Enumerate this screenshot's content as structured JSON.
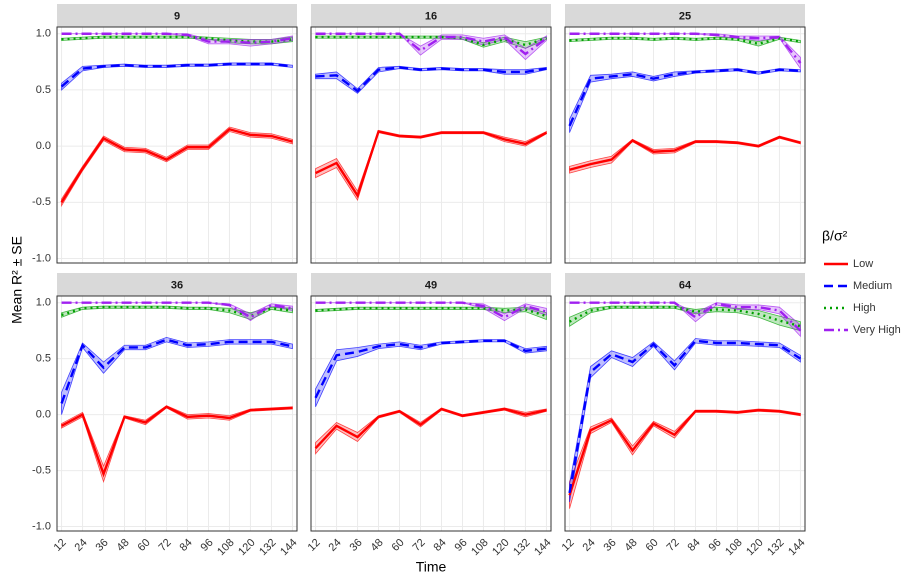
{
  "chart_data": [
    {
      "type": "line",
      "title": "9",
      "ylabel": "Mean R² ± SE",
      "xlabel": "Time",
      "legend_title": "β/σ²",
      "x": [
        12,
        24,
        36,
        48,
        60,
        72,
        84,
        96,
        108,
        120,
        132,
        144
      ],
      "xlim": [
        9.4,
        146.6
      ],
      "ylim": [
        -1.04,
        1.06
      ],
      "yticks": [
        {
          "value": -1,
          "label": "-1.0"
        },
        {
          "value": -0.5,
          "label": "-0.5"
        },
        {
          "value": 0,
          "label": "0.0"
        },
        {
          "value": 0.5,
          "label": "0.5"
        },
        {
          "value": 1,
          "label": "1.0"
        }
      ],
      "grid": true,
      "series": [
        {
          "name": "Low",
          "color": "#ff0000",
          "values": [
            -0.5,
            -0.2,
            0.07,
            -0.03,
            -0.04,
            -0.12,
            -0.01,
            -0.01,
            0.15,
            0.1,
            0.09,
            0.04
          ],
          "se": [
            0.03,
            0.02,
            0.02,
            0.02,
            0.02,
            0.02,
            0.02,
            0.02,
            0.02,
            0.02,
            0.02,
            0.02
          ]
        },
        {
          "name": "Medium",
          "color": "#0000ff",
          "values": [
            0.53,
            0.69,
            0.71,
            0.72,
            0.71,
            0.71,
            0.72,
            0.72,
            0.73,
            0.73,
            0.73,
            0.71
          ],
          "se": [
            0.03,
            0.02,
            0.01,
            0.01,
            0.01,
            0.01,
            0.01,
            0.01,
            0.01,
            0.01,
            0.01,
            0.01
          ]
        },
        {
          "name": "High",
          "color": "#00a000",
          "values": [
            0.95,
            0.96,
            0.97,
            0.97,
            0.97,
            0.97,
            0.97,
            0.96,
            0.94,
            0.93,
            0.93,
            0.95
          ],
          "se": [
            0.01,
            0.01,
            0.01,
            0.01,
            0.01,
            0.01,
            0.01,
            0.01,
            0.02,
            0.02,
            0.02,
            0.02
          ]
        },
        {
          "name": "Very High",
          "color": "#a020f0",
          "values": [
            1,
            1,
            1,
            1,
            1,
            1,
            0.99,
            0.93,
            0.93,
            0.92,
            0.93,
            0.96
          ],
          "se": [
            0,
            0,
            0,
            0,
            0,
            0,
            0.01,
            0.02,
            0.02,
            0.03,
            0.02,
            0.02
          ]
        }
      ]
    },
    {
      "type": "line",
      "title": "16",
      "x": [
        12,
        24,
        36,
        48,
        60,
        72,
        84,
        96,
        108,
        120,
        132,
        144
      ],
      "xlim": [
        9.4,
        146.6
      ],
      "ylim": [
        -1.04,
        1.06
      ],
      "grid": true,
      "series": [
        {
          "name": "Low",
          "color": "#ff0000",
          "values": [
            -0.24,
            -0.15,
            -0.44,
            0.13,
            0.09,
            0.08,
            0.12,
            0.12,
            0.12,
            0.06,
            0.02,
            0.12
          ],
          "se": [
            0.04,
            0.04,
            0.04,
            0.01,
            0.01,
            0.01,
            0.01,
            0.01,
            0.01,
            0.02,
            0.02,
            0.01
          ]
        },
        {
          "name": "Medium",
          "color": "#0000ff",
          "values": [
            0.62,
            0.63,
            0.49,
            0.68,
            0.7,
            0.68,
            0.69,
            0.68,
            0.68,
            0.66,
            0.66,
            0.69
          ],
          "se": [
            0.02,
            0.03,
            0.02,
            0.02,
            0.01,
            0.01,
            0.01,
            0.01,
            0.01,
            0.02,
            0.02,
            0.01
          ]
        },
        {
          "name": "High",
          "color": "#00a000",
          "values": [
            0.97,
            0.97,
            0.97,
            0.97,
            0.97,
            0.97,
            0.97,
            0.96,
            0.9,
            0.95,
            0.9,
            0.96
          ],
          "se": [
            0.01,
            0.01,
            0.01,
            0.01,
            0.01,
            0.01,
            0.01,
            0.01,
            0.02,
            0.02,
            0.03,
            0.01
          ]
        },
        {
          "name": "Very High",
          "color": "#a020f0",
          "values": [
            1,
            1,
            1,
            1,
            1,
            0.85,
            0.97,
            0.97,
            0.93,
            0.97,
            0.82,
            0.96
          ],
          "se": [
            0,
            0,
            0,
            0,
            0,
            0.04,
            0.02,
            0.02,
            0.03,
            0.02,
            0.05,
            0.02
          ]
        }
      ]
    },
    {
      "type": "line",
      "title": "25",
      "x": [
        12,
        24,
        36,
        48,
        60,
        72,
        84,
        96,
        108,
        120,
        132,
        144
      ],
      "xlim": [
        9.4,
        146.6
      ],
      "ylim": [
        -1.04,
        1.06
      ],
      "grid": true,
      "series": [
        {
          "name": "Low",
          "color": "#ff0000",
          "values": [
            -0.21,
            -0.16,
            -0.12,
            0.05,
            -0.05,
            -0.04,
            0.04,
            0.04,
            0.03,
            0.0,
            0.08,
            0.03
          ],
          "se": [
            0.03,
            0.03,
            0.03,
            0.01,
            0.02,
            0.02,
            0.01,
            0.01,
            0.01,
            0.01,
            0.01,
            0.01
          ]
        },
        {
          "name": "Medium",
          "color": "#0000ff",
          "values": [
            0.18,
            0.6,
            0.62,
            0.64,
            0.6,
            0.64,
            0.66,
            0.67,
            0.68,
            0.65,
            0.68,
            0.67
          ],
          "se": [
            0.06,
            0.03,
            0.02,
            0.02,
            0.02,
            0.02,
            0.01,
            0.01,
            0.01,
            0.01,
            0.01,
            0.01
          ]
        },
        {
          "name": "High",
          "color": "#00a000",
          "values": [
            0.94,
            0.95,
            0.96,
            0.96,
            0.95,
            0.96,
            0.95,
            0.96,
            0.95,
            0.91,
            0.96,
            0.93
          ],
          "se": [
            0.01,
            0.01,
            0.01,
            0.01,
            0.01,
            0.01,
            0.01,
            0.01,
            0.01,
            0.02,
            0.01,
            0.01
          ]
        },
        {
          "name": "Very High",
          "color": "#a020f0",
          "values": [
            1,
            1,
            1,
            1,
            1,
            1,
            1,
            0.99,
            0.97,
            0.96,
            0.97,
            0.74
          ],
          "se": [
            0,
            0,
            0,
            0,
            0,
            0,
            0,
            0.01,
            0.01,
            0.02,
            0.01,
            0.05
          ]
        }
      ]
    },
    {
      "type": "line",
      "title": "36",
      "x": [
        12,
        24,
        36,
        48,
        60,
        72,
        84,
        96,
        108,
        120,
        132,
        144
      ],
      "xlim": [
        9.4,
        146.6
      ],
      "ylim": [
        -1.04,
        1.06
      ],
      "xticks": [
        12,
        24,
        36,
        48,
        60,
        72,
        84,
        96,
        108,
        120,
        132,
        144
      ],
      "yticks": [
        {
          "value": -1,
          "label": "-1.0"
        },
        {
          "value": -0.5,
          "label": "-0.5"
        },
        {
          "value": 0,
          "label": "0.0"
        },
        {
          "value": 0.5,
          "label": "0.5"
        },
        {
          "value": 1,
          "label": "1.0"
        }
      ],
      "grid": true,
      "series": [
        {
          "name": "Low",
          "color": "#ff0000",
          "values": [
            -0.1,
            0.0,
            -0.53,
            -0.02,
            -0.07,
            0.07,
            -0.02,
            -0.01,
            -0.03,
            0.04,
            0.05,
            0.06
          ],
          "se": [
            0.02,
            0.02,
            0.07,
            0.01,
            0.02,
            0.01,
            0.02,
            0.02,
            0.02,
            0.01,
            0.01,
            0.01
          ]
        },
        {
          "name": "Medium",
          "color": "#0000ff",
          "values": [
            0.1,
            0.62,
            0.42,
            0.6,
            0.6,
            0.67,
            0.62,
            0.63,
            0.65,
            0.65,
            0.65,
            0.61
          ],
          "se": [
            0.1,
            0.02,
            0.05,
            0.02,
            0.02,
            0.02,
            0.02,
            0.02,
            0.02,
            0.02,
            0.02,
            0.02
          ]
        },
        {
          "name": "High",
          "color": "#00a000",
          "values": [
            0.89,
            0.95,
            0.96,
            0.96,
            0.96,
            0.96,
            0.95,
            0.95,
            0.93,
            0.88,
            0.95,
            0.93
          ],
          "se": [
            0.02,
            0.01,
            0.01,
            0.01,
            0.01,
            0.01,
            0.01,
            0.01,
            0.02,
            0.03,
            0.01,
            0.02
          ]
        },
        {
          "name": "Very High",
          "color": "#a020f0",
          "values": [
            1,
            1,
            1,
            1,
            1,
            1,
            1,
            1,
            0.98,
            0.87,
            0.98,
            0.95
          ],
          "se": [
            0,
            0,
            0,
            0,
            0,
            0,
            0,
            0,
            0.01,
            0.03,
            0.01,
            0.02
          ]
        }
      ]
    },
    {
      "type": "line",
      "title": "49",
      "x": [
        12,
        24,
        36,
        48,
        60,
        72,
        84,
        96,
        108,
        120,
        132,
        144
      ],
      "xlim": [
        9.4,
        146.6
      ],
      "ylim": [
        -1.04,
        1.06
      ],
      "xticks": [
        12,
        24,
        36,
        48,
        60,
        72,
        84,
        96,
        108,
        120,
        132,
        144
      ],
      "grid": true,
      "series": [
        {
          "name": "Low",
          "color": "#ff0000",
          "values": [
            -0.3,
            -0.1,
            -0.2,
            -0.02,
            0.03,
            -0.09,
            0.05,
            -0.01,
            0.02,
            0.05,
            0.0,
            0.04
          ],
          "se": [
            0.05,
            0.03,
            0.04,
            0.01,
            0.01,
            0.02,
            0.01,
            0.01,
            0.01,
            0.01,
            0.02,
            0.01
          ]
        },
        {
          "name": "Medium",
          "color": "#0000ff",
          "values": [
            0.15,
            0.53,
            0.56,
            0.61,
            0.63,
            0.6,
            0.64,
            0.65,
            0.66,
            0.66,
            0.57,
            0.59
          ],
          "se": [
            0.08,
            0.05,
            0.04,
            0.02,
            0.02,
            0.02,
            0.01,
            0.01,
            0.01,
            0.01,
            0.02,
            0.02
          ]
        },
        {
          "name": "High",
          "color": "#00a000",
          "values": [
            0.93,
            0.94,
            0.95,
            0.95,
            0.95,
            0.95,
            0.95,
            0.95,
            0.95,
            0.93,
            0.94,
            0.88
          ],
          "se": [
            0.01,
            0.01,
            0.01,
            0.01,
            0.01,
            0.01,
            0.01,
            0.01,
            0.01,
            0.02,
            0.02,
            0.03
          ]
        },
        {
          "name": "Very High",
          "color": "#a020f0",
          "values": [
            1,
            1,
            1,
            1,
            1,
            1,
            1,
            1,
            0.97,
            0.87,
            0.97,
            0.92
          ],
          "se": [
            0,
            0,
            0,
            0,
            0,
            0,
            0,
            0,
            0.02,
            0.03,
            0.02,
            0.03
          ]
        }
      ]
    },
    {
      "type": "line",
      "title": "64",
      "x": [
        12,
        24,
        36,
        48,
        60,
        72,
        84,
        96,
        108,
        120,
        132,
        144
      ],
      "xlim": [
        9.4,
        146.6
      ],
      "ylim": [
        -1.04,
        1.06
      ],
      "xticks": [
        12,
        24,
        36,
        48,
        60,
        72,
        84,
        96,
        108,
        120,
        132,
        144
      ],
      "grid": true,
      "series": [
        {
          "name": "Low",
          "color": "#ff0000",
          "values": [
            -0.72,
            -0.14,
            -0.05,
            -0.32,
            -0.08,
            -0.18,
            0.03,
            0.03,
            0.02,
            0.04,
            0.03,
            0.0
          ],
          "se": [
            0.12,
            0.03,
            0.02,
            0.04,
            0.02,
            0.03,
            0.01,
            0.01,
            0.01,
            0.01,
            0.01,
            0.01
          ]
        },
        {
          "name": "Medium",
          "color": "#0000ff",
          "values": [
            -0.7,
            0.38,
            0.54,
            0.47,
            0.63,
            0.44,
            0.66,
            0.64,
            0.64,
            0.63,
            0.62,
            0.5
          ],
          "se": [
            0.08,
            0.05,
            0.03,
            0.04,
            0.02,
            0.04,
            0.02,
            0.02,
            0.02,
            0.02,
            0.02,
            0.03
          ]
        },
        {
          "name": "High",
          "color": "#00a000",
          "values": [
            0.83,
            0.93,
            0.96,
            0.96,
            0.96,
            0.96,
            0.92,
            0.94,
            0.93,
            0.9,
            0.84,
            0.79
          ],
          "se": [
            0.04,
            0.02,
            0.01,
            0.01,
            0.01,
            0.01,
            0.02,
            0.02,
            0.02,
            0.03,
            0.04,
            0.04
          ]
        },
        {
          "name": "Very High",
          "color": "#a020f0",
          "values": [
            1,
            1,
            1,
            1,
            1,
            1,
            0.87,
            0.99,
            0.96,
            0.96,
            0.93,
            0.75
          ],
          "se": [
            0,
            0,
            0,
            0,
            0,
            0,
            0.04,
            0.01,
            0.02,
            0.02,
            0.03,
            0.05
          ]
        }
      ]
    }
  ]
}
